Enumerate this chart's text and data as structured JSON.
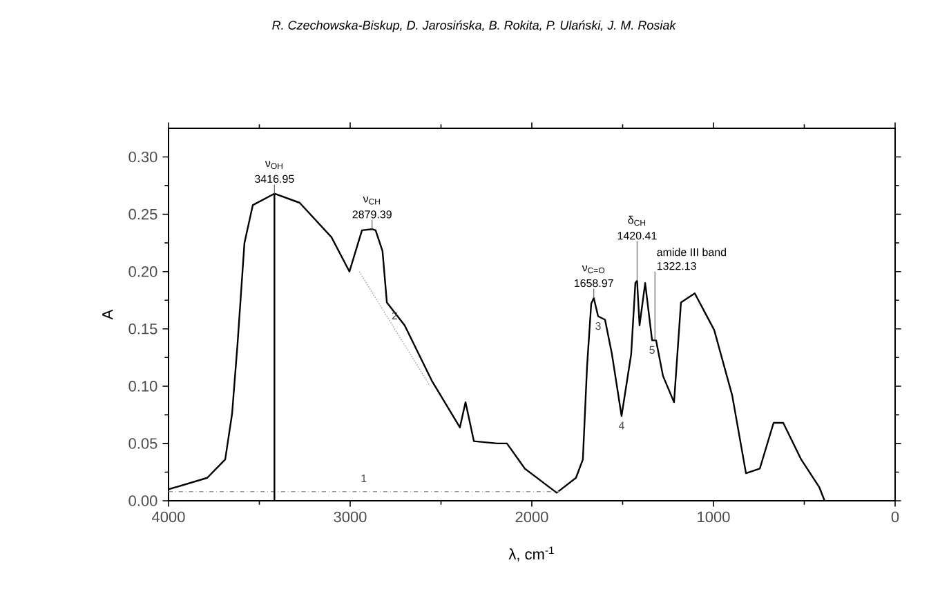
{
  "chart_data": {
    "type": "line",
    "xlabel": "λ, cm$^{-1}$",
    "ylabel": "A",
    "x": [
      4000,
      3787,
      3688,
      3650,
      3620,
      3582,
      3536,
      3416.95,
      3278,
      3103,
      3004,
      2935,
      2879.39,
      2860,
      2822,
      2798,
      2700,
      2548,
      2396,
      2365,
      2319,
      2190,
      2137,
      2038,
      1863,
      1757,
      1719,
      1696,
      1673,
      1658.97,
      1635,
      1597,
      1559,
      1506,
      1453,
      1430,
      1420.41,
      1407,
      1376,
      1338,
      1316,
      1278,
      1217,
      1179,
      1103,
      996,
      897,
      821,
      745,
      669,
      616,
      517,
      418,
      388
    ],
    "series": [
      {
        "color": "#000000",
        "values": [
          0.01,
          0.02,
          0.036,
          0.076,
          0.137,
          0.225,
          0.258,
          0.268,
          0.26,
          0.23,
          0.2,
          0.236,
          0.237,
          0.236,
          0.218,
          0.173,
          0.153,
          0.104,
          0.064,
          0.086,
          0.052,
          0.05,
          0.05,
          0.028,
          0.007,
          0.02,
          0.036,
          0.117,
          0.172,
          0.177,
          0.161,
          0.158,
          0.128,
          0.074,
          0.128,
          0.19,
          0.192,
          0.153,
          0.19,
          0.14,
          0.14,
          0.109,
          0.086,
          0.173,
          0.181,
          0.149,
          0.092,
          0.024,
          0.028,
          0.068,
          0.068,
          0.036,
          0.012,
          0.0
        ]
      },
      {
        "name": "1",
        "type": "line",
        "color": "#999999",
        "line_style": "dashed",
        "x": [
          4000,
          1850
        ],
        "values": [
          0.008,
          0.008
        ]
      },
      {
        "name": "2",
        "type": "line",
        "color": "#aaaaaa",
        "line_style": "dotted",
        "x": [
          2950,
          2560
        ],
        "values": [
          0.2,
          0.1
        ]
      }
    ],
    "xlim": [
      4000,
      0
    ],
    "xticks": [
      4000,
      3000,
      2000,
      1000,
      0
    ],
    "ylim": [
      0,
      0.325
    ],
    "yticks": [
      {
        "value": 0,
        "label": "0.00"
      },
      {
        "value": 0.05,
        "label": "0.05"
      },
      {
        "value": 0.1,
        "label": "0.10"
      },
      {
        "value": 0.15,
        "label": "0.15"
      },
      {
        "value": 0.2,
        "label": "0.20"
      },
      {
        "value": 0.25,
        "label": "0.25"
      },
      {
        "value": 0.3,
        "label": "0.30"
      }
    ],
    "ref_lines": [
      {
        "axis": "x",
        "value": 3416.95,
        "color": "#000000"
      }
    ],
    "annotations": [
      "R. Czechowska-Biskup, D. Jarosińska, B. Rokita, P. Ulański, J. M. Rosiak",
      {
        "text": "3416.95",
        "x": 3416.95,
        "y": 0.268
      },
      "ν$_{OH}$",
      {
        "text": "2879.39",
        "x": 2879.39,
        "y": 0.237
      },
      "ν$_{CH}$",
      {
        "text": "1658.97",
        "x": 1658.97,
        "y": 0.177
      },
      "ν$_{C=O}$",
      {
        "text": "1420.41",
        "x": 1420.41,
        "y": 0.192
      },
      "δ$_{CH}$",
      {
        "text": "1322.13",
        "x": 1322.13,
        "y": 0.14
      },
      "amide III band",
      {
        "text": "3",
        "x": 1635,
        "y": 0.161
      },
      {
        "text": "4",
        "x": 1506,
        "y": 0.074
      },
      {
        "text": "5",
        "x": 1338,
        "y": 0.14
      }
    ]
  }
}
